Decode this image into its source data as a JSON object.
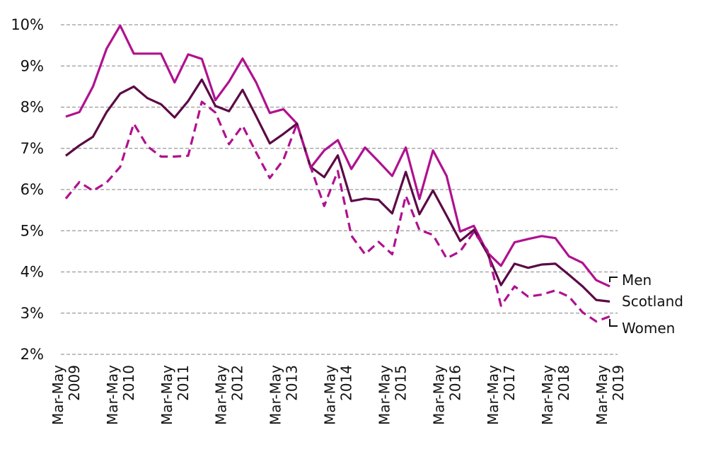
{
  "chart_data": {
    "type": "line",
    "title": "",
    "xlabel": "",
    "ylabel": "",
    "ylim": [
      2,
      10
    ],
    "yticks": [
      {
        "value": 2,
        "label": "2%"
      },
      {
        "value": 3,
        "label": "3%"
      },
      {
        "value": 4,
        "label": "4%"
      },
      {
        "value": 5,
        "label": "5%"
      },
      {
        "value": 6,
        "label": "6%"
      },
      {
        "value": 7,
        "label": "7%"
      },
      {
        "value": 8,
        "label": "8%"
      },
      {
        "value": 9,
        "label": "9%"
      },
      {
        "value": 10,
        "label": "10%"
      }
    ],
    "xticks": [
      {
        "index": 0,
        "line1": "Mar-May",
        "line2": "2009"
      },
      {
        "index": 4,
        "line1": "Mar-May",
        "line2": "2010"
      },
      {
        "index": 8,
        "line1": "Mar-May",
        "line2": "2011"
      },
      {
        "index": 12,
        "line1": "Mar-May",
        "line2": "2012"
      },
      {
        "index": 16,
        "line1": "Mar-May",
        "line2": "2013"
      },
      {
        "index": 20,
        "line1": "Mar-May",
        "line2": "2014"
      },
      {
        "index": 24,
        "line1": "Mar-May",
        "line2": "2015"
      },
      {
        "index": 28,
        "line1": "Mar-May",
        "line2": "2016"
      },
      {
        "index": 32,
        "line1": "Mar-May",
        "line2": "2017"
      },
      {
        "index": 36,
        "line1": "Mar-May",
        "line2": "2018"
      },
      {
        "index": 40,
        "line1": "Mar-May",
        "line2": "2019"
      }
    ],
    "grid": "horizontal",
    "series": [
      {
        "name": "Men",
        "color": "#b0118f",
        "dash": "solid",
        "values": [
          7.77,
          7.88,
          8.5,
          9.42,
          9.98,
          9.3,
          9.3,
          9.3,
          8.6,
          9.28,
          9.17,
          8.17,
          8.62,
          9.18,
          8.6,
          7.86,
          7.95,
          7.6,
          6.53,
          6.95,
          7.2,
          6.5,
          7.02,
          6.68,
          6.33,
          7.02,
          5.77,
          6.95,
          6.33,
          4.98,
          5.12,
          4.47,
          4.15,
          4.72,
          4.8,
          4.87,
          4.82,
          4.38,
          4.22,
          3.8,
          3.65
        ]
      },
      {
        "name": "Scotland",
        "color": "#5b0a45",
        "dash": "solid",
        "values": [
          6.82,
          7.07,
          7.28,
          7.88,
          8.33,
          8.5,
          8.22,
          8.07,
          7.75,
          8.15,
          8.67,
          8.03,
          7.9,
          8.42,
          7.78,
          7.12,
          7.35,
          7.6,
          6.55,
          6.3,
          6.83,
          5.72,
          5.78,
          5.75,
          5.42,
          6.43,
          5.4,
          5.98,
          5.37,
          4.75,
          5.02,
          4.45,
          3.68,
          4.2,
          4.1,
          4.18,
          4.2,
          3.93,
          3.65,
          3.32,
          3.28
        ]
      },
      {
        "name": "Women",
        "color": "#b0118f",
        "dash": "dashed",
        "values": [
          5.78,
          6.18,
          5.97,
          6.17,
          6.55,
          7.6,
          7.05,
          6.8,
          6.8,
          6.82,
          8.13,
          7.87,
          7.1,
          7.55,
          6.9,
          6.28,
          6.72,
          7.6,
          6.55,
          5.6,
          6.45,
          4.88,
          4.43,
          4.73,
          4.43,
          5.85,
          5.02,
          4.9,
          4.33,
          4.5,
          4.97,
          4.52,
          3.18,
          3.65,
          3.4,
          3.45,
          3.55,
          3.4,
          3.02,
          2.8,
          2.92
        ]
      }
    ]
  },
  "legend": {
    "men": "Men",
    "scotland": "Scotland",
    "women": "Women"
  }
}
